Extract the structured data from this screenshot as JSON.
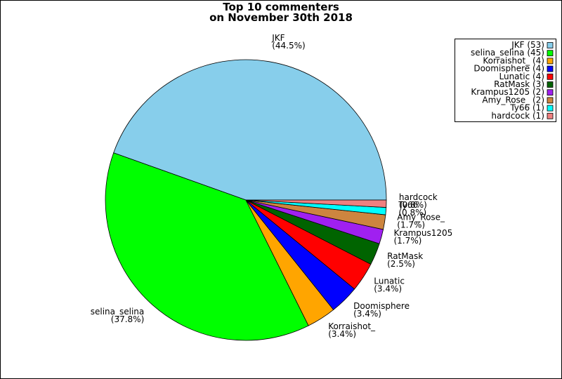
{
  "chart_data": {
    "type": "pie",
    "title_lines": [
      "Top 10 commenters",
      "on November 30th 2018"
    ],
    "categories": [
      "JKF",
      "selina_selina",
      "Korraishot_",
      "Doomisphere",
      "Lunatic",
      "RatMask",
      "Krampus1205",
      "Amy_Rose_",
      "Ty66",
      "hardcock"
    ],
    "values": [
      53,
      45,
      4,
      4,
      4,
      3,
      2,
      2,
      1,
      1
    ],
    "value_labels": [
      "(44.5%)",
      "(37.8%)",
      "(3.4%)",
      "(3.4%)",
      "(3.4%)",
      "(2.5%)",
      "(1.7%)",
      "(1.7%)",
      "(0.8%)",
      "(0.8%)"
    ],
    "legend_labels": [
      "JKF (53)",
      "selina_selina (45)",
      "Korraishot_ (4)",
      "Doomisphere (4)",
      "Lunatic (4)",
      "RatMask (3)",
      "Krampus1205 (2)",
      "Amy_Rose_ (2)",
      "Ty66 (1)",
      "hardcock (1)"
    ],
    "colors": [
      "#87ceeb",
      "#00ff00",
      "#ffa500",
      "#0000ff",
      "#ff0000",
      "#006400",
      "#a020f0",
      "#cd853f",
      "#00ffff",
      "#f08080"
    ],
    "legend_position": "upper right"
  }
}
